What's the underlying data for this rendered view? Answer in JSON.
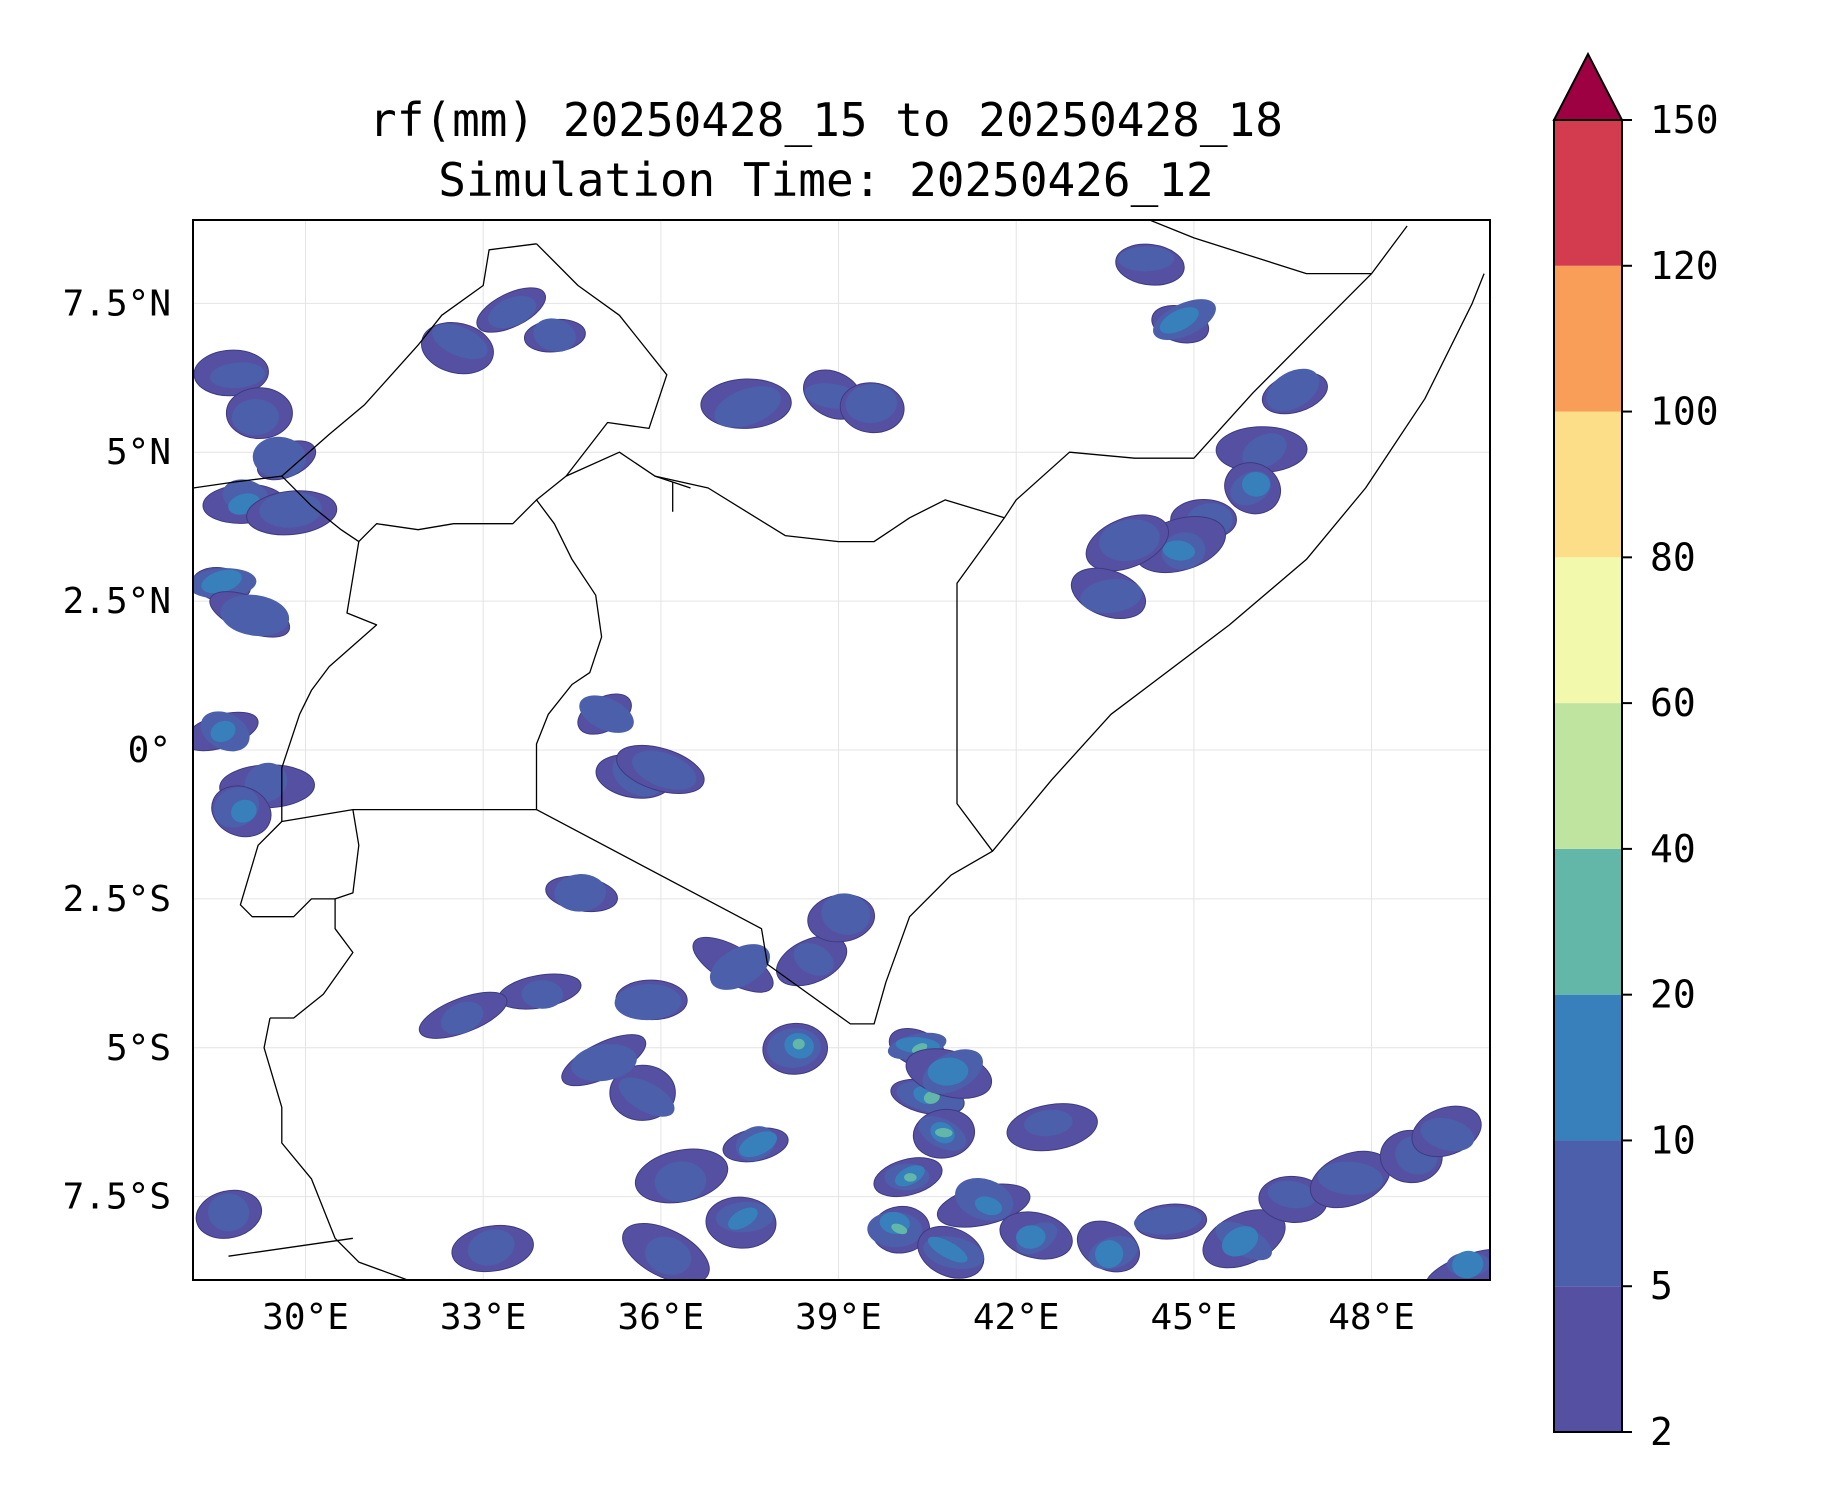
{
  "title": {
    "line1": "rf(mm) 20250428_15 to 20250428_18",
    "line2": "Simulation Time: 20250426_12"
  },
  "map": {
    "lon_range": [
      28.1,
      50.0
    ],
    "lat_range": [
      -8.9,
      8.9
    ],
    "x_ticks": [
      {
        "value": 30,
        "label": "30°E"
      },
      {
        "value": 33,
        "label": "33°E"
      },
      {
        "value": 36,
        "label": "36°E"
      },
      {
        "value": 39,
        "label": "39°E"
      },
      {
        "value": 42,
        "label": "42°E"
      },
      {
        "value": 45,
        "label": "45°E"
      },
      {
        "value": 48,
        "label": "48°E"
      }
    ],
    "y_ticks": [
      {
        "value": 7.5,
        "label": "7.5°N"
      },
      {
        "value": 5,
        "label": "5°N"
      },
      {
        "value": 2.5,
        "label": "2.5°N"
      },
      {
        "value": 0,
        "label": "0°"
      },
      {
        "value": -2.5,
        "label": "2.5°S"
      },
      {
        "value": -5,
        "label": "5°S"
      },
      {
        "value": -7.5,
        "label": "7.5°S"
      }
    ],
    "grid": true,
    "basemap_fill": "#ffffff",
    "border_color": "#000000"
  },
  "colorbar": {
    "extend": "max",
    "levels": [
      {
        "label": "2",
        "value": 2,
        "color": "#5650a3"
      },
      {
        "label": "5",
        "value": 5,
        "color": "#4b5fab"
      },
      {
        "label": "10",
        "value": 10,
        "color": "#3780bc"
      },
      {
        "label": "20",
        "value": 20,
        "color": "#62b7a8"
      },
      {
        "label": "40",
        "value": 40,
        "color": "#bfe4a0"
      },
      {
        "label": "60",
        "value": 60,
        "color": "#f2f9ac"
      },
      {
        "label": "80",
        "value": 80,
        "color": "#fcdd88"
      },
      {
        "label": "100",
        "value": 100,
        "color": "#f99e59"
      },
      {
        "label": "120",
        "value": 120,
        "color": "#d33c4e"
      },
      {
        "label": "150",
        "value": 150,
        "color": "#9e0142"
      }
    ]
  },
  "rain_cells": [
    {
      "lon": 28.8,
      "lat": 6.3,
      "class": 1
    },
    {
      "lon": 29.2,
      "lat": 5.6,
      "class": 1
    },
    {
      "lon": 29.6,
      "lat": 4.9,
      "class": 1
    },
    {
      "lon": 29.0,
      "lat": 4.2,
      "class": 2
    },
    {
      "lon": 29.8,
      "lat": 4.0,
      "class": 1
    },
    {
      "lon": 28.6,
      "lat": 2.8,
      "class": 2
    },
    {
      "lon": 29.1,
      "lat": 2.3,
      "class": 1
    },
    {
      "lon": 28.6,
      "lat": 0.3,
      "class": 2
    },
    {
      "lon": 29.3,
      "lat": -0.6,
      "class": 1
    },
    {
      "lon": 28.9,
      "lat": -1.0,
      "class": 2
    },
    {
      "lon": 33.5,
      "lat": 7.4,
      "class": 1
    },
    {
      "lon": 34.2,
      "lat": 6.9,
      "class": 1
    },
    {
      "lon": 32.6,
      "lat": 6.8,
      "class": 1
    },
    {
      "lon": 35.1,
      "lat": 0.6,
      "class": 1
    },
    {
      "lon": 35.6,
      "lat": -0.4,
      "class": 1
    },
    {
      "lon": 36.0,
      "lat": -0.3,
      "class": 1
    },
    {
      "lon": 34.6,
      "lat": -2.4,
      "class": 1
    },
    {
      "lon": 37.5,
      "lat": 5.8,
      "class": 1
    },
    {
      "lon": 38.9,
      "lat": 5.9,
      "class": 1
    },
    {
      "lon": 39.6,
      "lat": 5.8,
      "class": 1
    },
    {
      "lon": 46.2,
      "lat": 5.0,
      "class": 1
    },
    {
      "lon": 46.0,
      "lat": 4.4,
      "class": 2
    },
    {
      "lon": 45.2,
      "lat": 3.9,
      "class": 1
    },
    {
      "lon": 44.8,
      "lat": 3.4,
      "class": 2
    },
    {
      "lon": 43.9,
      "lat": 3.5,
      "class": 1
    },
    {
      "lon": 43.6,
      "lat": 2.6,
      "class": 1
    },
    {
      "lon": 44.8,
      "lat": 7.2,
      "class": 2
    },
    {
      "lon": 44.2,
      "lat": 8.2,
      "class": 1
    },
    {
      "lon": 46.7,
      "lat": 6.0,
      "class": 1
    },
    {
      "lon": 38.6,
      "lat": -3.5,
      "class": 1
    },
    {
      "lon": 37.3,
      "lat": -3.6,
      "class": 1
    },
    {
      "lon": 39.1,
      "lat": -2.8,
      "class": 1
    },
    {
      "lon": 34.0,
      "lat": -4.1,
      "class": 1
    },
    {
      "lon": 32.7,
      "lat": -4.5,
      "class": 1
    },
    {
      "lon": 35.8,
      "lat": -4.2,
      "class": 1
    },
    {
      "lon": 38.3,
      "lat": -5.0,
      "class": 3
    },
    {
      "lon": 37.6,
      "lat": -6.6,
      "class": 2
    },
    {
      "lon": 36.3,
      "lat": -7.2,
      "class": 1
    },
    {
      "lon": 37.4,
      "lat": -7.9,
      "class": 2
    },
    {
      "lon": 36.1,
      "lat": -8.5,
      "class": 1
    },
    {
      "lon": 40.4,
      "lat": -5.0,
      "class": 3
    },
    {
      "lon": 40.5,
      "lat": -5.8,
      "class": 3
    },
    {
      "lon": 40.8,
      "lat": -6.4,
      "class": 3
    },
    {
      "lon": 40.9,
      "lat": -5.4,
      "class": 2
    },
    {
      "lon": 40.2,
      "lat": -7.2,
      "class": 3
    },
    {
      "lon": 40.0,
      "lat": -8.0,
      "class": 3
    },
    {
      "lon": 40.9,
      "lat": -8.4,
      "class": 2
    },
    {
      "lon": 41.5,
      "lat": -7.6,
      "class": 2
    },
    {
      "lon": 42.3,
      "lat": -8.2,
      "class": 2
    },
    {
      "lon": 42.6,
      "lat": -6.3,
      "class": 1
    },
    {
      "lon": 43.6,
      "lat": -8.4,
      "class": 2
    },
    {
      "lon": 44.6,
      "lat": -7.9,
      "class": 1
    },
    {
      "lon": 45.8,
      "lat": -8.2,
      "class": 2
    },
    {
      "lon": 46.7,
      "lat": -7.5,
      "class": 1
    },
    {
      "lon": 47.6,
      "lat": -7.2,
      "class": 1
    },
    {
      "lon": 48.7,
      "lat": -6.8,
      "class": 1
    },
    {
      "lon": 49.3,
      "lat": -6.4,
      "class": 1
    },
    {
      "lon": 49.6,
      "lat": -8.7,
      "class": 2
    },
    {
      "lon": 28.7,
      "lat": -7.8,
      "class": 1
    },
    {
      "lon": 33.2,
      "lat": -8.4,
      "class": 1
    },
    {
      "lon": 35.7,
      "lat": -5.8,
      "class": 1
    },
    {
      "lon": 35.0,
      "lat": -5.2,
      "class": 1
    }
  ],
  "borders": [
    [
      [
        28.1,
        4.4
      ],
      [
        28.8,
        4.5
      ],
      [
        29.6,
        4.6
      ],
      [
        30.1,
        4.1
      ],
      [
        30.6,
        3.7
      ],
      [
        30.9,
        3.5
      ],
      [
        30.8,
        2.9
      ],
      [
        30.7,
        2.3
      ],
      [
        31.2,
        2.1
      ],
      [
        30.4,
        1.4
      ],
      [
        30.1,
        1.0
      ],
      [
        29.9,
        0.6
      ],
      [
        29.6,
        -0.3
      ],
      [
        29.6,
        -0.9
      ],
      [
        29.6,
        -1.2
      ]
    ],
    [
      [
        29.6,
        -1.2
      ],
      [
        30.8,
        -1.0
      ],
      [
        31.6,
        -1.0
      ],
      [
        33.9,
        -1.0
      ]
    ],
    [
      [
        30.8,
        -1.0
      ],
      [
        30.9,
        -1.6
      ],
      [
        30.8,
        -2.4
      ],
      [
        30.5,
        -2.5
      ],
      [
        30.5,
        -3.0
      ],
      [
        30.8,
        -3.4
      ],
      [
        30.3,
        -4.1
      ],
      [
        29.8,
        -4.5
      ],
      [
        29.4,
        -4.5
      ]
    ],
    [
      [
        29.6,
        -1.2
      ],
      [
        29.2,
        -1.6
      ],
      [
        28.9,
        -2.6
      ],
      [
        29.1,
        -2.8
      ],
      [
        29.8,
        -2.8
      ],
      [
        30.1,
        -2.5
      ],
      [
        30.5,
        -2.5
      ]
    ],
    [
      [
        29.4,
        -4.5
      ],
      [
        29.3,
        -5.0
      ],
      [
        29.6,
        -6.0
      ],
      [
        29.6,
        -6.6
      ],
      [
        30.1,
        -7.2
      ],
      [
        30.5,
        -8.2
      ],
      [
        30.9,
        -8.6
      ],
      [
        32.0,
        -9.0
      ],
      [
        33.2,
        -9.3
      ]
    ],
    [
      [
        28.7,
        -8.5
      ],
      [
        30.8,
        -8.2
      ]
    ],
    [
      [
        33.9,
        -1.0
      ],
      [
        33.9,
        0.1
      ],
      [
        34.1,
        0.6
      ],
      [
        34.5,
        1.1
      ],
      [
        34.8,
        1.3
      ],
      [
        35.0,
        1.9
      ],
      [
        34.9,
        2.6
      ],
      [
        34.5,
        3.2
      ],
      [
        34.2,
        3.8
      ],
      [
        33.9,
        4.2
      ],
      [
        33.5,
        3.8
      ],
      [
        32.5,
        3.8
      ],
      [
        31.9,
        3.7
      ],
      [
        31.2,
        3.8
      ],
      [
        30.9,
        3.5
      ]
    ],
    [
      [
        33.9,
        4.2
      ],
      [
        34.4,
        4.6
      ],
      [
        35.3,
        5.0
      ],
      [
        35.9,
        4.6
      ],
      [
        36.8,
        4.4
      ],
      [
        38.1,
        3.6
      ],
      [
        39.0,
        3.5
      ],
      [
        39.6,
        3.5
      ],
      [
        40.2,
        3.9
      ],
      [
        40.8,
        4.2
      ],
      [
        41.8,
        3.9
      ],
      [
        41.0,
        2.8
      ],
      [
        41.0,
        -0.9
      ],
      [
        41.6,
        -1.7
      ]
    ],
    [
      [
        33.9,
        -1.0
      ],
      [
        37.7,
        -3.0
      ],
      [
        37.8,
        -3.6
      ],
      [
        39.2,
        -4.6
      ],
      [
        39.6,
        -4.6
      ],
      [
        39.8,
        -3.9
      ],
      [
        40.2,
        -2.8
      ],
      [
        40.9,
        -2.1
      ],
      [
        41.6,
        -1.7
      ],
      [
        42.6,
        -0.5
      ],
      [
        43.6,
        0.6
      ],
      [
        45.6,
        2.1
      ],
      [
        46.9,
        3.2
      ],
      [
        47.9,
        4.4
      ],
      [
        48.9,
        5.9
      ],
      [
        49.7,
        7.5
      ],
      [
        49.9,
        8.0
      ]
    ],
    [
      [
        29.6,
        4.6
      ],
      [
        30.4,
        5.3
      ],
      [
        31.0,
        5.8
      ],
      [
        31.9,
        6.8
      ],
      [
        32.3,
        7.3
      ],
      [
        33.0,
        7.8
      ],
      [
        33.1,
        8.4
      ],
      [
        33.9,
        8.5
      ]
    ],
    [
      [
        34.4,
        4.6
      ],
      [
        35.1,
        5.5
      ],
      [
        35.8,
        5.4
      ],
      [
        36.1,
        6.3
      ],
      [
        35.3,
        7.3
      ],
      [
        34.6,
        7.8
      ],
      [
        33.9,
        8.5
      ]
    ],
    [
      [
        35.9,
        4.6
      ],
      [
        36.5,
        4.4
      ]
    ],
    [
      [
        41.8,
        3.9
      ],
      [
        42.0,
        4.2
      ],
      [
        42.9,
        5.0
      ],
      [
        44.0,
        4.9
      ],
      [
        45.0,
        4.9
      ],
      [
        46.0,
        6.0
      ],
      [
        47.0,
        7.0
      ],
      [
        48.0,
        8.0
      ],
      [
        48.6,
        8.8
      ]
    ],
    [
      [
        43.4,
        9.0
      ],
      [
        44.0,
        9.0
      ],
      [
        45.0,
        8.6
      ],
      [
        46.9,
        8.0
      ],
      [
        48.0,
        8.0
      ]
    ],
    [
      [
        36.2,
        4.5
      ],
      [
        36.2,
        4.0
      ]
    ]
  ]
}
